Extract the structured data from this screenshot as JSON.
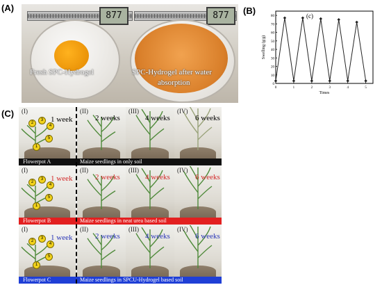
{
  "panel_labels": {
    "a": "(A)",
    "b": "(B)",
    "c": "(C)"
  },
  "panel_a": {
    "readout_left": "877",
    "readout_right": "877",
    "caption_left": "Fresh SPC-Hydrogel",
    "caption_right_line1": "SPC-Hydrogel after water",
    "caption_right_line2": "absorption"
  },
  "chart_data": {
    "type": "line",
    "inner_label": "(c)",
    "xlabel": "Times",
    "ylabel": "Swelling (g/g)",
    "x": [
      0,
      0.5,
      1,
      1.5,
      2,
      2.5,
      3,
      3.5,
      4,
      4.5,
      5
    ],
    "values": [
      3,
      77,
      3,
      77,
      3,
      76,
      3,
      75,
      3,
      72,
      3
    ],
    "xlim": [
      0,
      5.4
    ],
    "ylim": [
      0,
      85
    ],
    "xticks": [
      "0",
      "1",
      "2",
      "3",
      "4",
      "5"
    ],
    "yticks": [
      "0",
      "10",
      "20",
      "30",
      "40",
      "50",
      "60",
      "70",
      "80"
    ],
    "grid": false,
    "color": "#222222"
  },
  "panel_c": {
    "rows": [
      {
        "color": "#000000",
        "bar_color": "#111111",
        "bar_left": "Flowerpot  A",
        "bar_right": "Maize seedlings in only soil",
        "cells": [
          {
            "roman": "(I)",
            "label": "1 week"
          },
          {
            "roman": "(II)",
            "label": "2 weeks"
          },
          {
            "roman": "(III)",
            "label": "4 weeks"
          },
          {
            "roman": "(IV)",
            "label": "6 weeks"
          }
        ]
      },
      {
        "color": "#d42a2a",
        "bar_color": "#e32020",
        "bar_left": "Flowerpot  B",
        "bar_right": "Maize seedlings in neat urea based soil",
        "cells": [
          {
            "roman": "(I)",
            "label": "1 week"
          },
          {
            "roman": "(II)",
            "label": "2 weeks"
          },
          {
            "roman": "(III)",
            "label": "4 weeks"
          },
          {
            "roman": "(IV)",
            "label": "6 weeks"
          }
        ]
      },
      {
        "color": "#2a36b8",
        "bar_color": "#1f3fd6",
        "bar_left": "Flowerpot  C",
        "bar_right": "Maize seedlings in SPCU-Hydrogel based soil",
        "cells": [
          {
            "roman": "(I)",
            "label": "1 week"
          },
          {
            "roman": "(II)",
            "label": "2 weeks"
          },
          {
            "roman": "(III)",
            "label": "4 weeks"
          },
          {
            "roman": "(IV)",
            "label": "6 weeks"
          }
        ]
      }
    ],
    "leaf_numbers": [
      "1",
      "2",
      "3",
      "4",
      "5"
    ]
  }
}
